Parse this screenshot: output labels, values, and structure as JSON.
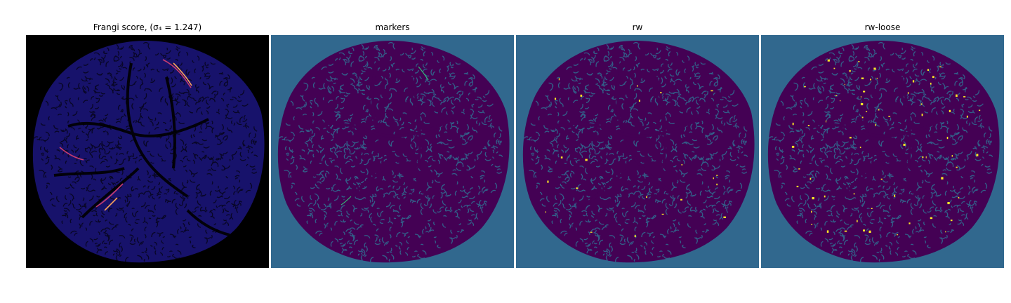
{
  "figure": {
    "panels": [
      {
        "title": "Frangi score, (σ₄ = 1.247)",
        "colormap": "magma",
        "background": "#000000"
      },
      {
        "title": "markers",
        "colormap": "viridis",
        "background": "#31688e"
      },
      {
        "title": "rw",
        "colormap": "viridis",
        "background": "#31688e"
      },
      {
        "title": "rw-loose",
        "colormap": "viridis",
        "background": "#31688e"
      }
    ]
  }
}
